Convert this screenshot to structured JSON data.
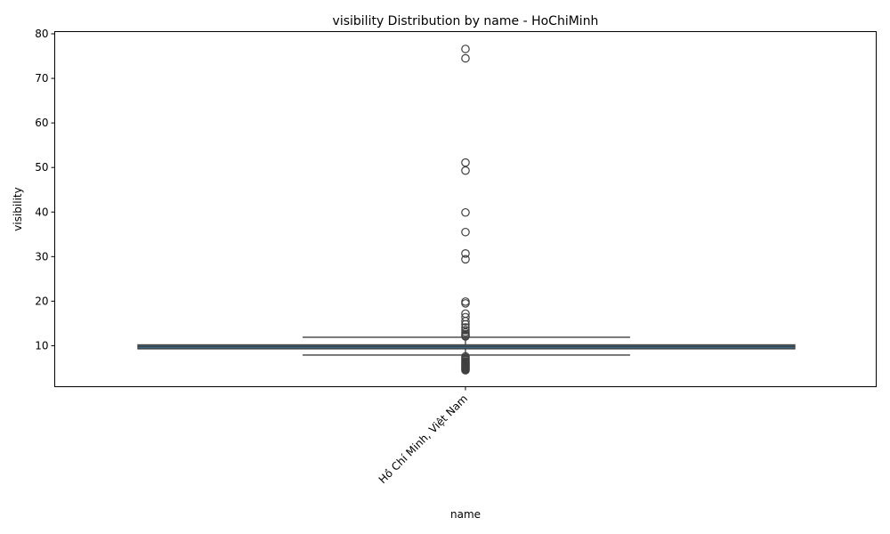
{
  "chart_data": {
    "type": "box",
    "title": "visibility Distribution by name - HoChiMinh",
    "xlabel": "name",
    "ylabel": "visibility",
    "categories": [
      "Hồ Chí Minh, Việt Nam"
    ],
    "ylim": [
      0.8,
      80.5
    ],
    "yticks": [
      10,
      20,
      30,
      40,
      50,
      60,
      70,
      80
    ],
    "grid": false,
    "box": {
      "q1": 9.3,
      "median": 9.8,
      "q3": 10.2,
      "whisker_low": 7.9,
      "whisker_high": 11.9
    },
    "outliers": [
      76.6,
      74.5,
      51.1,
      49.3,
      39.9,
      35.5,
      30.7,
      29.4,
      19.9,
      19.5,
      17.2,
      16.4,
      15.5,
      14.8,
      14.1,
      13.5,
      13.0,
      12.6,
      12.3,
      12.1,
      7.6,
      7.3,
      7.0,
      6.8,
      6.5,
      6.3,
      6.1,
      5.9,
      5.7,
      5.5,
      5.3,
      5.1,
      4.9,
      4.7,
      4.5
    ],
    "colors": {
      "box_fill": "#3a6f8f",
      "box_edge": "#3f3f3f"
    }
  }
}
